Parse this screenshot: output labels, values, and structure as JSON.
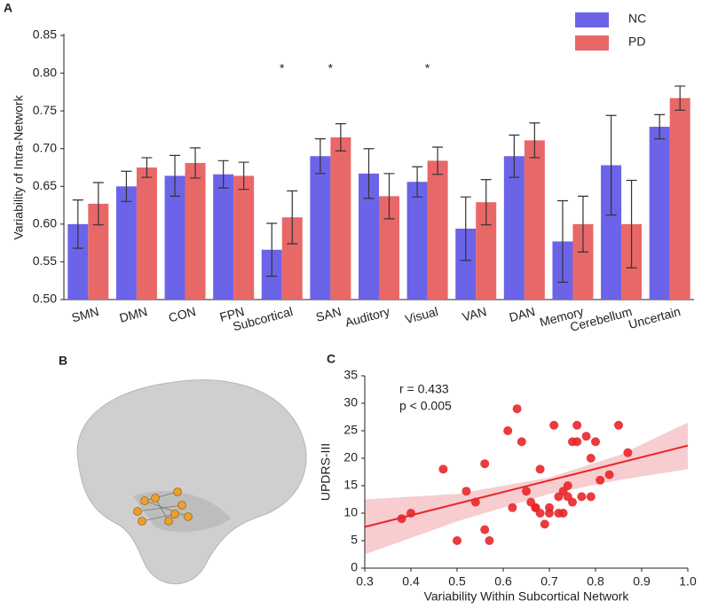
{
  "panel_labels": [
    "A",
    "B",
    "C"
  ],
  "chart_data": [
    {
      "type": "bar",
      "ylabel": "Variability of Intra-Network",
      "categories": [
        "SMN",
        "DMN",
        "CON",
        "FPN",
        "Subcortical",
        "SAN",
        "Auditory",
        "Visual",
        "VAN",
        "DAN",
        "Memory",
        "Cerebellum",
        "Uncertain"
      ],
      "series": [
        {
          "name": "NC",
          "color": "#6b64e8",
          "values": [
            0.6,
            0.65,
            0.664,
            0.666,
            0.566,
            0.69,
            0.667,
            0.656,
            0.594,
            0.69,
            0.577,
            0.678,
            0.729
          ],
          "errors": [
            0.032,
            0.02,
            0.027,
            0.018,
            0.035,
            0.023,
            0.033,
            0.02,
            0.042,
            0.028,
            0.054,
            0.066,
            0.016
          ]
        },
        {
          "name": "PD",
          "color": "#e86868",
          "values": [
            0.627,
            0.675,
            0.681,
            0.664,
            0.609,
            0.715,
            0.637,
            0.684,
            0.629,
            0.711,
            0.6,
            0.6,
            0.767
          ],
          "errors": [
            0.028,
            0.013,
            0.02,
            0.018,
            0.035,
            0.018,
            0.03,
            0.018,
            0.03,
            0.023,
            0.037,
            0.058,
            0.016
          ]
        }
      ],
      "significance": [
        null,
        null,
        null,
        null,
        "*",
        "*",
        null,
        "*",
        null,
        null,
        null,
        null,
        null
      ],
      "ylim": [
        0.5,
        0.85
      ],
      "yticks": [
        {
          "value": 0.5,
          "label": "0.50"
        },
        0.55,
        {
          "value": 0.6,
          "label": "0.60"
        },
        0.65,
        {
          "value": 0.7,
          "label": "0.70"
        },
        0.75,
        {
          "value": 0.8,
          "label": "0.80"
        },
        0.85
      ],
      "legend": "top-right"
    },
    {
      "type": "scatter",
      "xlabel": "Variability Within Subcortical Network",
      "ylabel": "UPDRS-III",
      "color": "#e8262a",
      "x": [
        0.38,
        0.4,
        0.47,
        0.5,
        0.52,
        0.54,
        0.56,
        0.56,
        0.57,
        0.61,
        0.62,
        0.63,
        0.64,
        0.65,
        0.66,
        0.67,
        0.67,
        0.68,
        0.69,
        0.7,
        0.7,
        0.71,
        0.72,
        0.73,
        0.73,
        0.74,
        0.74,
        0.75,
        0.75,
        0.76,
        0.76,
        0.77,
        0.78,
        0.79,
        0.79,
        0.8,
        0.81,
        0.83,
        0.85,
        0.87,
        0.72,
        0.68
      ],
      "y": [
        9,
        10,
        18,
        5,
        14,
        12,
        19,
        7,
        5,
        25,
        11,
        29,
        23,
        14,
        12,
        11,
        11,
        18,
        8,
        10,
        11,
        26,
        13,
        10,
        14,
        15,
        13,
        23,
        12,
        26,
        23,
        13,
        24,
        20,
        13,
        23,
        16,
        17,
        26,
        21,
        10,
        10
      ],
      "xlim": [
        0.3,
        1.0
      ],
      "xticks": [
        0.3,
        0.4,
        0.5,
        0.6,
        0.7,
        0.8,
        0.9,
        {
          "value": 1.0,
          "label": "1.0"
        }
      ],
      "ylim": [
        0,
        35
      ],
      "yticks": [
        0,
        5,
        10,
        15,
        20,
        25,
        30,
        35
      ],
      "annotations": [
        "r = 0.433",
        "p < 0.005"
      ],
      "fit": {
        "x": [
          0.3,
          1.0
        ],
        "y": [
          7.5,
          22.3
        ]
      },
      "ci": {
        "x": [
          0.3,
          0.5,
          0.7,
          0.85,
          1.0
        ],
        "lower": [
          2.5,
          8.5,
          13.5,
          16,
          18
        ],
        "upper": [
          12.5,
          13.5,
          16.5,
          20.5,
          26.5
        ]
      }
    }
  ]
}
